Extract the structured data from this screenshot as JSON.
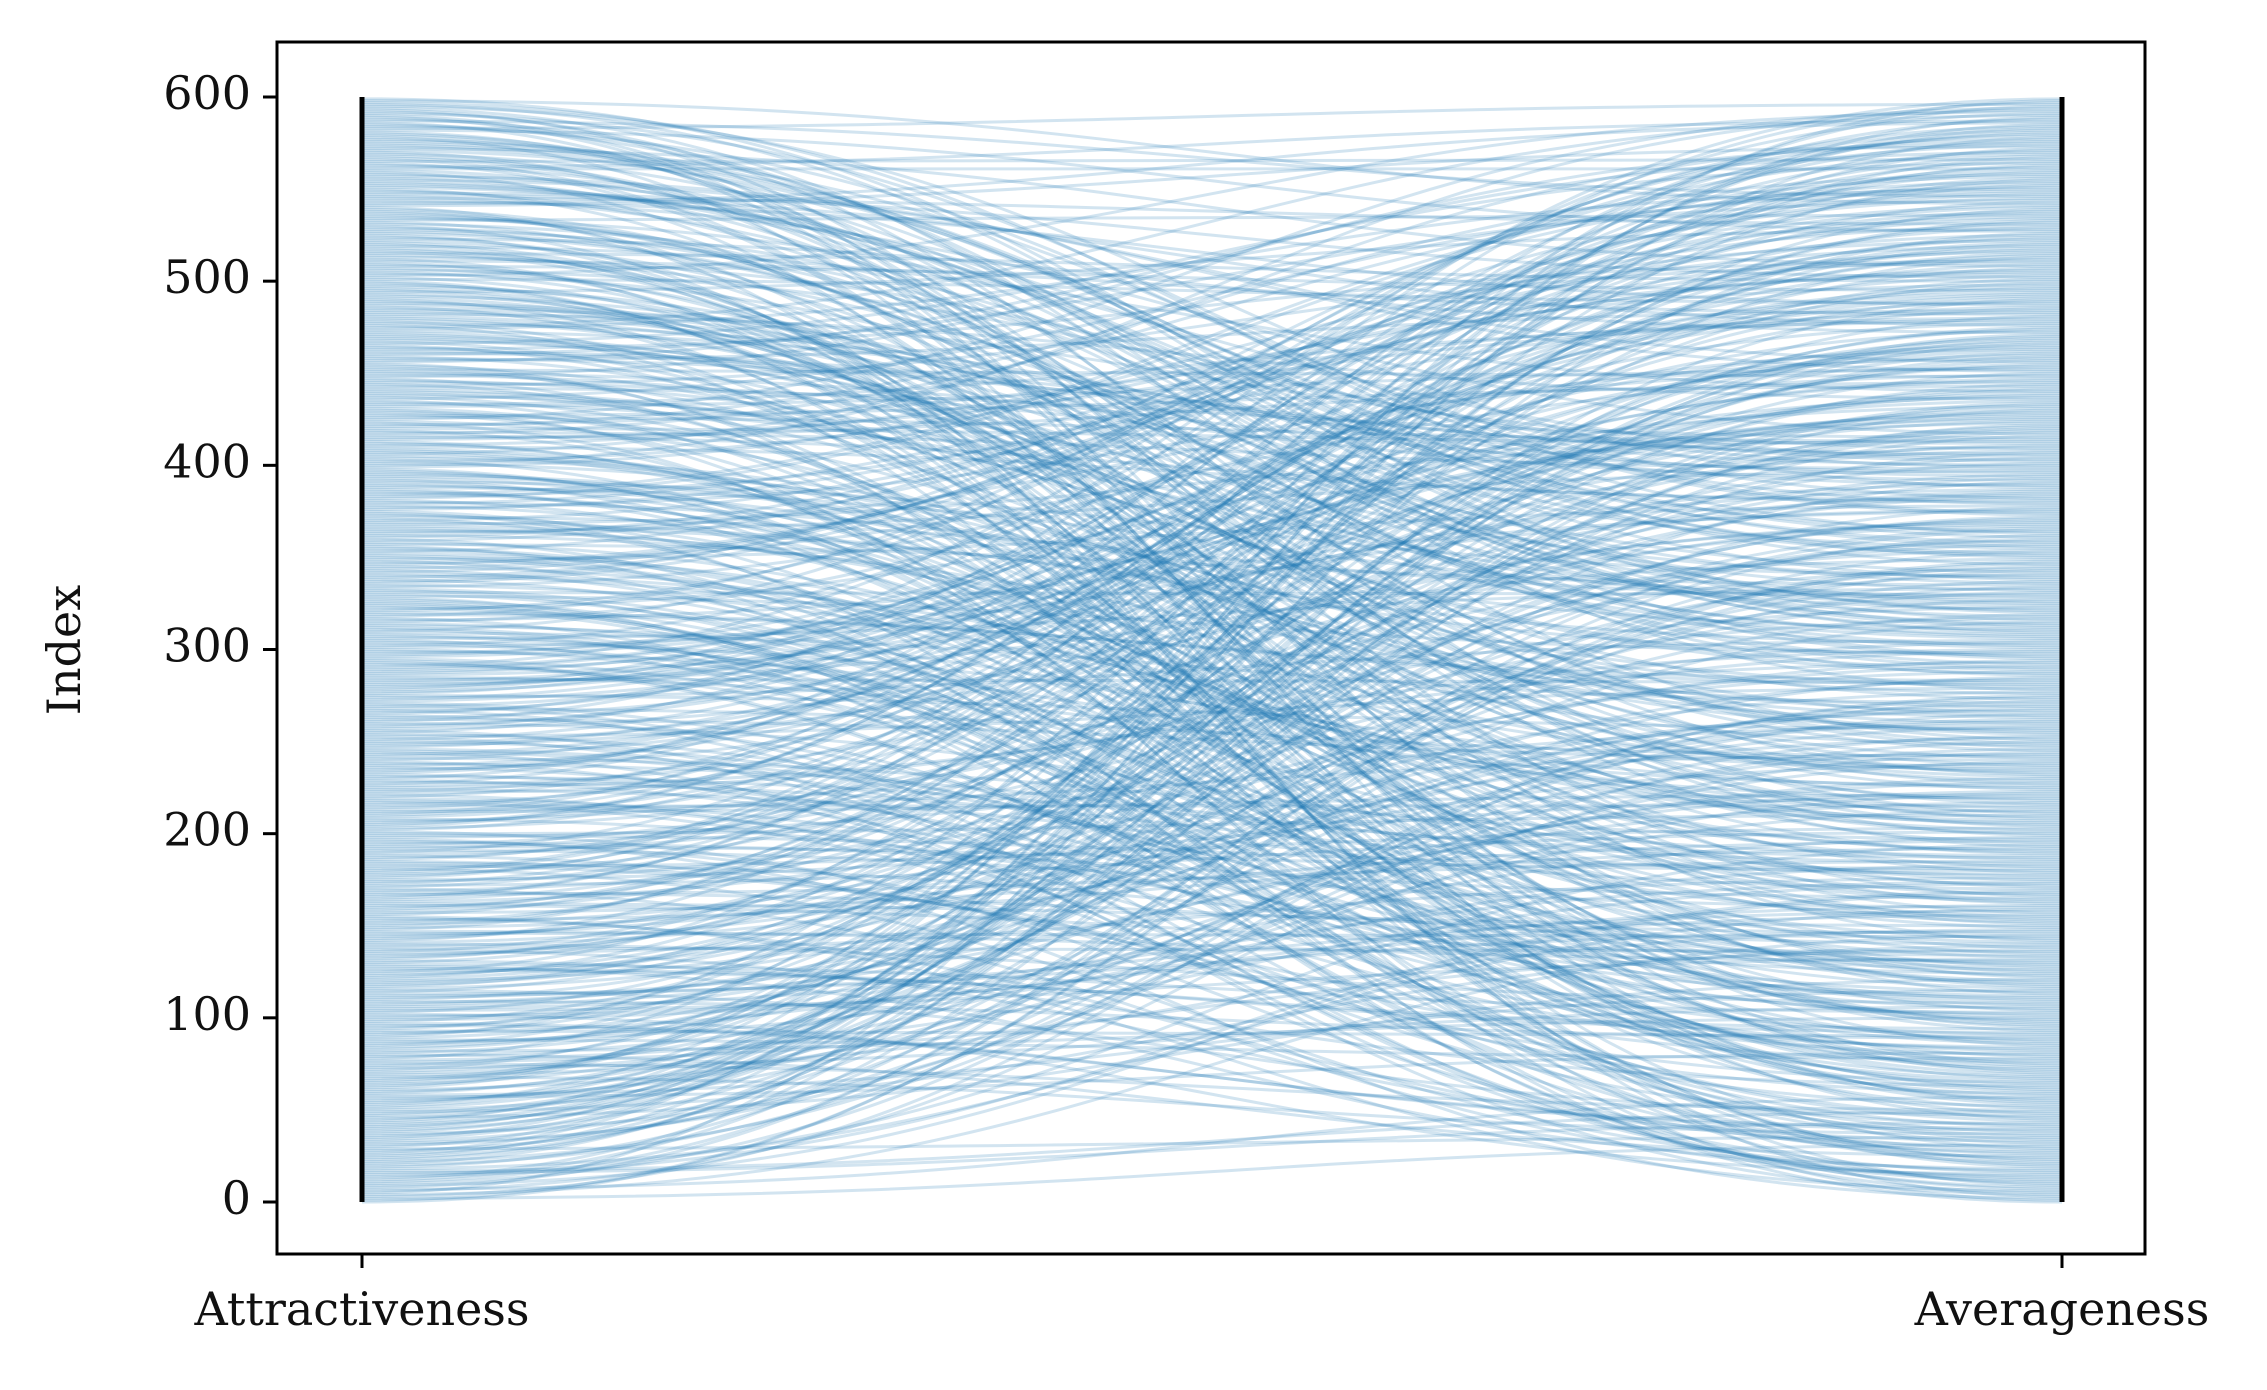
{
  "chart_data": {
    "type": "parallel_coordinates",
    "title": "",
    "xlabel": "",
    "ylabel": "Index",
    "axes": [
      "Attractiveness",
      "Averageness"
    ],
    "ylim": [
      0,
      600
    ],
    "yticks": [
      0,
      100,
      200,
      300,
      400,
      500,
      600
    ],
    "n_lines": 600,
    "line_color": "#1f77b4",
    "line_alpha": 0.2,
    "axis_line_color": "#000000",
    "grid": false,
    "legend": "none",
    "series": [
      {
        "note_fields": "each line connects a rank on Attractiveness (left) to a rank on Averageness (right)",
        "values": []
      }
    ]
  }
}
